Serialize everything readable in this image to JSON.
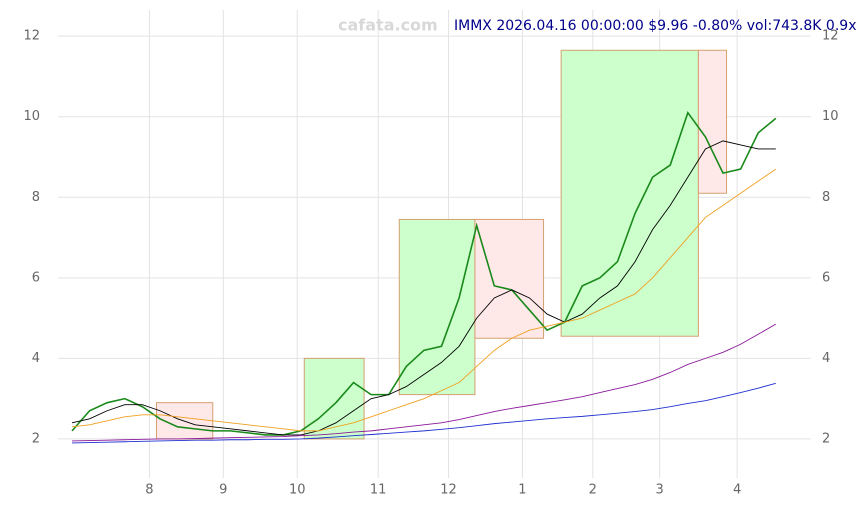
{
  "watermark": "cafata.com",
  "chart_data": {
    "type": "line",
    "title": "IMMX 2026.04.16 00:00:00 $9.96 -0.80% vol:743.8K 0.9x",
    "x": [
      0,
      5,
      10,
      15,
      20,
      25,
      30,
      35,
      40,
      45,
      50,
      55,
      60,
      65,
      70,
      75,
      80,
      85,
      90,
      95,
      100,
      105,
      110,
      115,
      120,
      125,
      130,
      135,
      140,
      145,
      150,
      155,
      160,
      165,
      170,
      175,
      180,
      185,
      190,
      195,
      200
    ],
    "series": [
      {
        "color": "#1a8a1a",
        "values": [
          2.2,
          2.7,
          2.9,
          3.0,
          2.8,
          2.5,
          2.3,
          2.25,
          2.2,
          2.2,
          2.15,
          2.1,
          2.1,
          2.2,
          2.5,
          2.9,
          3.4,
          3.1,
          3.1,
          3.8,
          4.2,
          4.3,
          5.5,
          7.3,
          5.8,
          5.7,
          5.2,
          4.7,
          4.9,
          5.8,
          6.0,
          6.4,
          7.6,
          8.5,
          8.8,
          10.1,
          9.5,
          8.6,
          8.7,
          9.6,
          9.96
        ]
      },
      {
        "color": "#000000",
        "values": [
          2.4,
          2.5,
          2.7,
          2.85,
          2.85,
          2.7,
          2.5,
          2.35,
          2.3,
          2.25,
          2.2,
          2.15,
          2.1,
          2.1,
          2.2,
          2.4,
          2.7,
          3.0,
          3.1,
          3.3,
          3.6,
          3.9,
          4.3,
          5.0,
          5.5,
          5.7,
          5.5,
          5.1,
          4.9,
          5.1,
          5.5,
          5.8,
          6.4,
          7.2,
          7.8,
          8.5,
          9.2,
          9.4,
          9.3,
          9.2,
          9.2
        ]
      },
      {
        "color": "#f0a020",
        "values": [
          2.3,
          2.35,
          2.45,
          2.55,
          2.6,
          2.6,
          2.55,
          2.5,
          2.45,
          2.4,
          2.35,
          2.3,
          2.25,
          2.2,
          2.2,
          2.3,
          2.4,
          2.55,
          2.7,
          2.85,
          3.0,
          3.2,
          3.4,
          3.8,
          4.2,
          4.5,
          4.7,
          4.8,
          4.9,
          5.0,
          5.2,
          5.4,
          5.6,
          6.0,
          6.5,
          7.0,
          7.5,
          7.8,
          8.1,
          8.4,
          8.7
        ]
      },
      {
        "color": "#8b1a9b",
        "values": [
          1.95,
          1.96,
          1.97,
          1.98,
          1.99,
          2.0,
          2.0,
          2.01,
          2.02,
          2.03,
          2.04,
          2.05,
          2.06,
          2.08,
          2.1,
          2.13,
          2.17,
          2.2,
          2.25,
          2.3,
          2.35,
          2.4,
          2.48,
          2.58,
          2.68,
          2.76,
          2.83,
          2.9,
          2.97,
          3.05,
          3.15,
          3.25,
          3.35,
          3.48,
          3.65,
          3.85,
          4.0,
          4.15,
          4.35,
          4.6,
          4.85
        ]
      },
      {
        "color": "#2030d0",
        "values": [
          1.9,
          1.91,
          1.92,
          1.93,
          1.94,
          1.95,
          1.96,
          1.97,
          1.97,
          1.98,
          1.98,
          1.99,
          1.99,
          2.0,
          2.02,
          2.05,
          2.08,
          2.11,
          2.14,
          2.17,
          2.2,
          2.24,
          2.28,
          2.33,
          2.38,
          2.42,
          2.46,
          2.5,
          2.53,
          2.56,
          2.6,
          2.64,
          2.68,
          2.73,
          2.8,
          2.88,
          2.95,
          3.05,
          3.15,
          3.26,
          3.38
        ]
      }
    ],
    "boxes": [
      {
        "x": [
          24,
          40
        ],
        "y": [
          2.0,
          2.9
        ],
        "color": "#ffe8e8"
      },
      {
        "x": [
          66,
          83
        ],
        "y": [
          2.0,
          4.0
        ],
        "color": "#ccffcc"
      },
      {
        "x": [
          93,
          114.5
        ],
        "y": [
          3.1,
          7.45
        ],
        "color": "#ccffcc"
      },
      {
        "x": [
          114.5,
          134
        ],
        "y": [
          4.5,
          7.45
        ],
        "color": "#ffe8e8"
      },
      {
        "x": [
          139,
          178
        ],
        "y": [
          4.55,
          11.65
        ],
        "color": "#ccffcc"
      },
      {
        "x": [
          178,
          186
        ],
        "y": [
          8.1,
          11.65
        ],
        "color": "#ffe8e8"
      }
    ],
    "xlim": [
      0,
      210
    ],
    "ylim": [
      1.03,
      12.65
    ],
    "xticks": [
      {
        "value": 22,
        "label": "8"
      },
      {
        "value": 43,
        "label": "9"
      },
      {
        "value": 64,
        "label": "10"
      },
      {
        "value": 87,
        "label": "11"
      },
      {
        "value": 107,
        "label": "12"
      },
      {
        "value": 128,
        "label": "1"
      },
      {
        "value": 148,
        "label": "2"
      },
      {
        "value": 167,
        "label": "3"
      },
      {
        "value": 189,
        "label": "4"
      }
    ],
    "yticks": [
      2,
      4,
      6,
      8,
      10,
      12
    ],
    "grid": true
  }
}
